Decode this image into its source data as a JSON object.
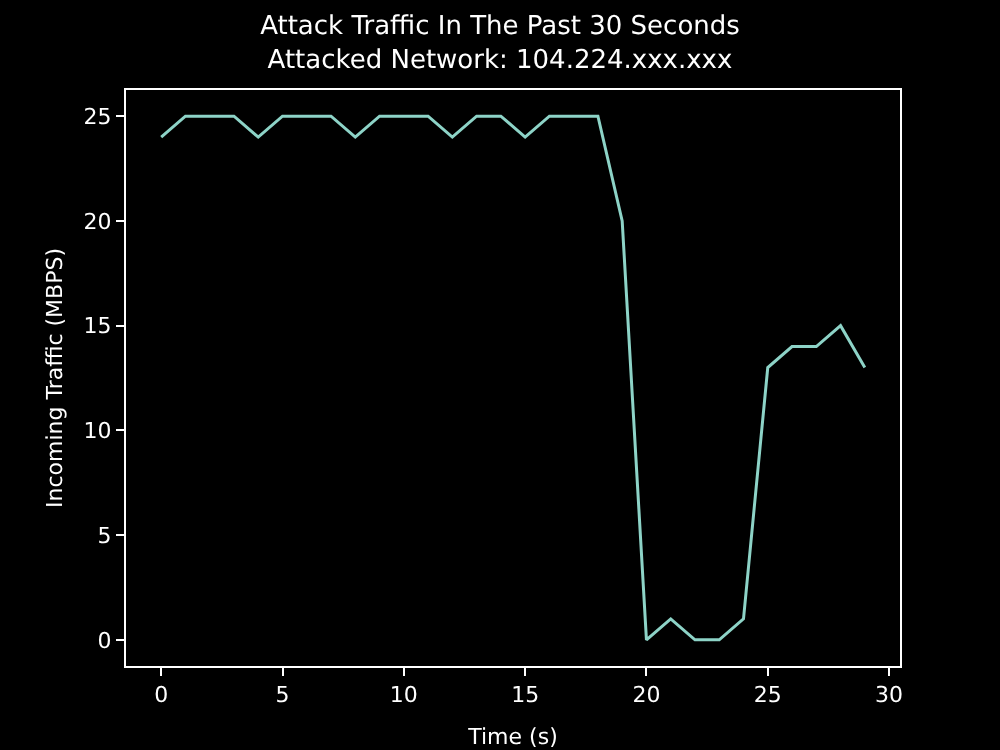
{
  "chart_data": {
    "type": "line",
    "title": "Attack Traffic In The Past 30 Seconds",
    "subtitle": "Attacked Network: 104.224.xxx.xxx",
    "xlabel": "Time (s)",
    "ylabel": "Incoming Traffic (MBPS)",
    "x": [
      0,
      1,
      2,
      3,
      4,
      5,
      6,
      7,
      8,
      9,
      10,
      11,
      12,
      13,
      14,
      15,
      16,
      17,
      18,
      19,
      20,
      21,
      22,
      23,
      24,
      25,
      26,
      27,
      28,
      29
    ],
    "series": [
      {
        "color": "#8dd3c7",
        "values": [
          24,
          25,
          25,
          25,
          24,
          25,
          25,
          25,
          24,
          25,
          25,
          25,
          24,
          25,
          25,
          24,
          25,
          25,
          25,
          20,
          0,
          1,
          0,
          0,
          1,
          13,
          14,
          14,
          15,
          13
        ]
      }
    ],
    "xlim": [
      -1.45,
      30.45
    ],
    "xticks": [
      0,
      5,
      10,
      15,
      20,
      25,
      30
    ],
    "ylim": [
      -1.25,
      26.25
    ],
    "yticks": [
      0,
      5,
      10,
      15,
      20,
      25
    ],
    "grid": false,
    "marker": "none",
    "line_style": "solid"
  }
}
